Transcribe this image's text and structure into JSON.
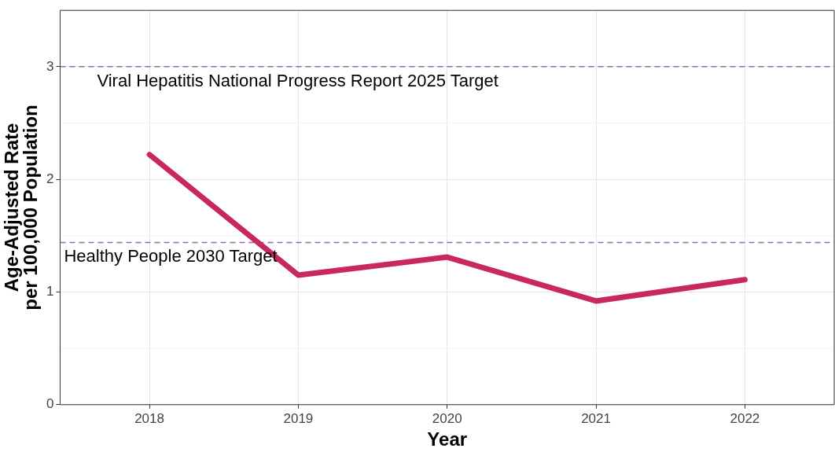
{
  "chart_data": {
    "type": "line",
    "xlabel": "Year",
    "ylabel": "Age-Adjusted Rate\nper 100,000 Population",
    "categories": [
      "2018",
      "2019",
      "2020",
      "2021",
      "2022"
    ],
    "series": [
      {
        "color": "#c8285f",
        "values": [
          2.22,
          1.15,
          1.31,
          0.92,
          1.11
        ]
      }
    ],
    "ylim": [
      0,
      3.5
    ],
    "yticks": [
      0,
      1,
      2,
      3
    ],
    "grid": true,
    "legend": false,
    "marker": "none",
    "line_style": "solid",
    "ref_lines": [
      {
        "axis": "y",
        "value": 3,
        "label": "Viral Hepatitis National Progress Report 2025 Target",
        "color": "#8c6bb1",
        "line_style": "dashed"
      },
      {
        "axis": "y",
        "value": 1.44,
        "label": "Healthy People 2030 Target",
        "color": "#8c6bb1",
        "line_style": "dashed"
      }
    ]
  }
}
